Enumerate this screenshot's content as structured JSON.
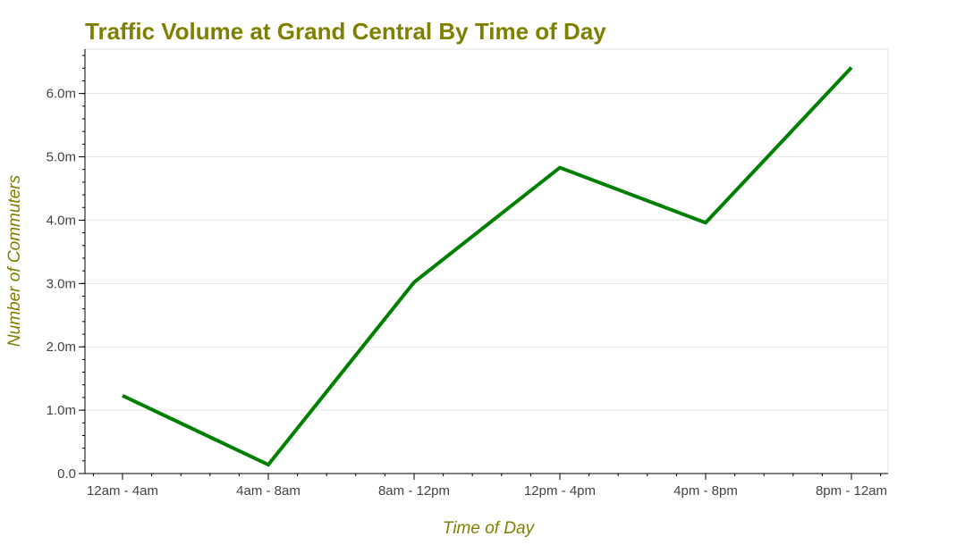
{
  "chart_data": {
    "type": "line",
    "title": "Traffic Volume at Grand Central By Time of Day",
    "xlabel": "Time of Day",
    "ylabel": "Number of Commuters",
    "categories": [
      "12am - 4am",
      "4am - 8am",
      "8am - 12pm",
      "12pm - 4pm",
      "4pm - 8pm",
      "8pm - 12am"
    ],
    "series": [
      {
        "values": [
          1230000,
          140000,
          3020000,
          4830000,
          3960000,
          6410000
        ],
        "color": "#008000"
      }
    ],
    "ylim": [
      0,
      6700000
    ],
    "yticks": [
      0,
      1000000,
      2000000,
      3000000,
      4000000,
      5000000,
      6000000
    ],
    "ytick_labels": [
      "0.0",
      "1.0m",
      "2.0m",
      "3.0m",
      "4.0m",
      "5.0m",
      "6.0m"
    ],
    "grid": true,
    "legend": "none",
    "colors": {
      "title": "#808000",
      "axis_label": "#808000",
      "line": "#008000"
    }
  }
}
